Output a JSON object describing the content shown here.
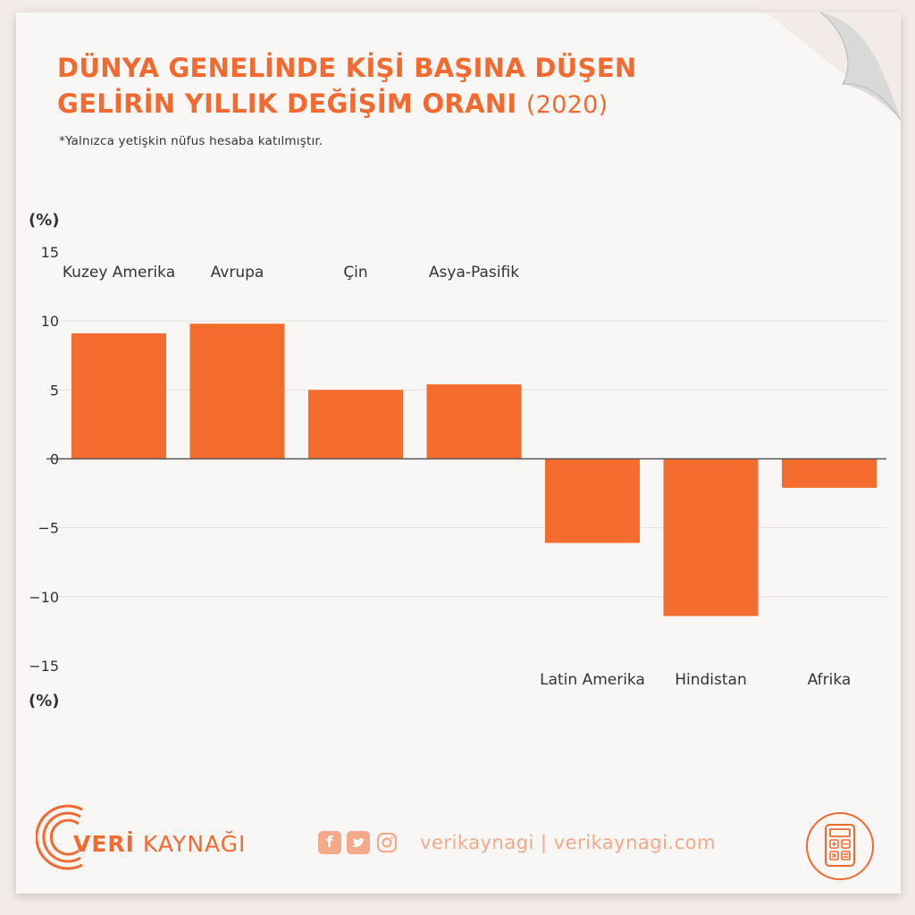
{
  "header": {
    "title_line1": "DÜNYA GENELİNDE KİŞİ BAŞINA DÜŞEN",
    "title_line2": "GELİRİN YILLIK DEĞİŞİM ORANI",
    "title_year": "(2020)",
    "subtitle": "*Yalnızca yetişkin nüfus hesaba katılmıştır."
  },
  "chart_data": {
    "type": "bar",
    "title": "DÜNYA GENELİNDE KİŞİ BAŞINA DÜŞEN GELİRİN YILLIK DEĞİŞİM ORANI (2020)",
    "ylabel_top": "(%)",
    "ylabel_bottom": "(%)",
    "ylim": [
      -15,
      15
    ],
    "yticks": [
      15,
      10,
      5,
      0,
      -5,
      -10,
      -15
    ],
    "ytick_labels": [
      "15",
      "10",
      "5",
      "0",
      "−5",
      "−10",
      "−15"
    ],
    "categories": [
      "Kuzey Amerika",
      "Avrupa",
      "Çin",
      "Asya-Pasifik",
      "Latin Amerika",
      "Hindistan",
      "Afrika"
    ],
    "values": [
      9.1,
      9.8,
      5.0,
      5.4,
      -6.1,
      -11.4,
      -2.1
    ],
    "grid": true,
    "bar_color": "#f46d2f"
  },
  "footer": {
    "brand_bold": "VERİ",
    "brand_rest": " KAYNAĞI",
    "social_icons": [
      "facebook-icon",
      "twitter-icon",
      "instagram-icon"
    ],
    "handle": "verikaynagi | verikaynagi.com"
  },
  "colors": {
    "accent": "#f26a2f",
    "accent_light": "#f4a98a",
    "background": "#f8f7f6"
  }
}
